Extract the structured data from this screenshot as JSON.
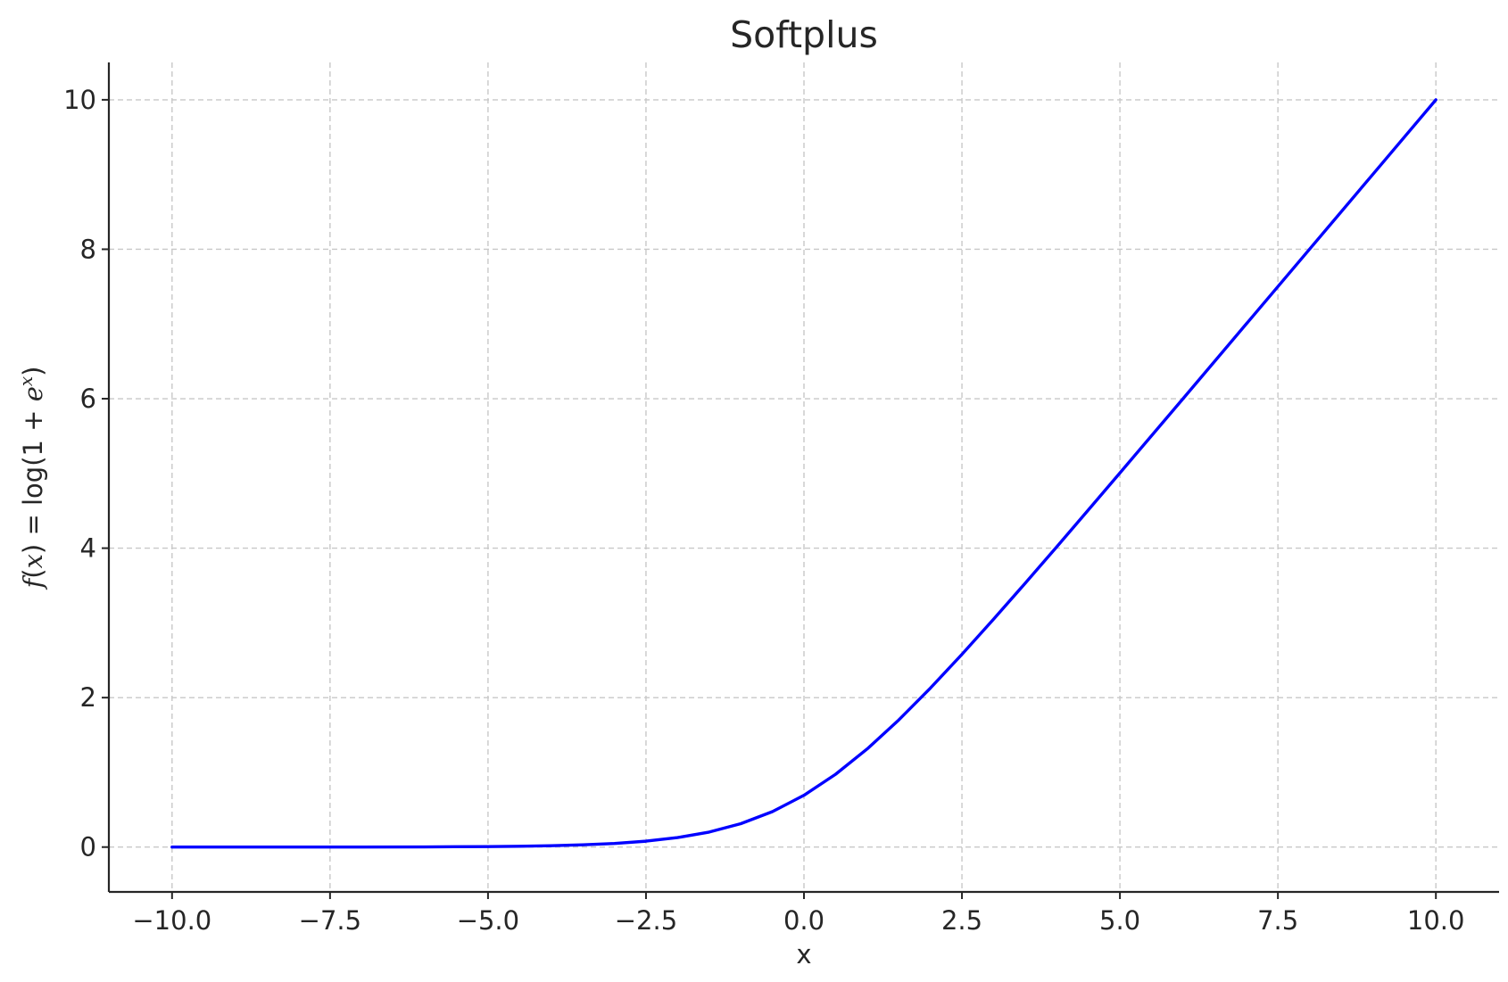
{
  "chart_data": {
    "type": "line",
    "title": "Softplus",
    "xlabel": "x",
    "ylabel": {
      "f": "f",
      "open": "(",
      "x": "x",
      "middle": ") = log(1 + ",
      "e": "e",
      "sup": "x",
      "close": ")"
    },
    "xlim": [
      -11,
      11
    ],
    "ylim": [
      -0.6,
      10.5
    ],
    "xticks": [
      -10.0,
      -7.5,
      -5.0,
      -2.5,
      0.0,
      2.5,
      5.0,
      7.5,
      10.0
    ],
    "xtick_labels": [
      "−10.0",
      "−7.5",
      "−5.0",
      "−2.5",
      "0.0",
      "2.5",
      "5.0",
      "7.5",
      "10.0"
    ],
    "yticks": [
      0,
      2,
      4,
      6,
      8,
      10
    ],
    "ytick_labels": [
      "0",
      "2",
      "4",
      "6",
      "8",
      "10"
    ],
    "grid": true,
    "series": [
      {
        "color": "#0000ff",
        "x": [
          -10,
          -9,
          -8,
          -7,
          -6,
          -5,
          -4.5,
          -4,
          -3.5,
          -3,
          -2.5,
          -2,
          -1.5,
          -1,
          -0.5,
          0,
          0.5,
          1,
          1.5,
          2,
          2.5,
          3,
          3.5,
          4,
          4.5,
          5,
          6,
          7,
          8,
          9,
          10
        ],
        "y": [
          4.54e-05,
          0.000123,
          0.000335,
          0.000911,
          0.00248,
          0.00672,
          0.011,
          0.0181,
          0.0298,
          0.0486,
          0.0789,
          0.127,
          0.201,
          0.313,
          0.474,
          0.693,
          0.974,
          1.313,
          1.701,
          2.127,
          2.579,
          3.049,
          3.53,
          4.018,
          4.511,
          5.007,
          6.002,
          7.001,
          8.0,
          9.0,
          10.0
        ]
      }
    ]
  }
}
